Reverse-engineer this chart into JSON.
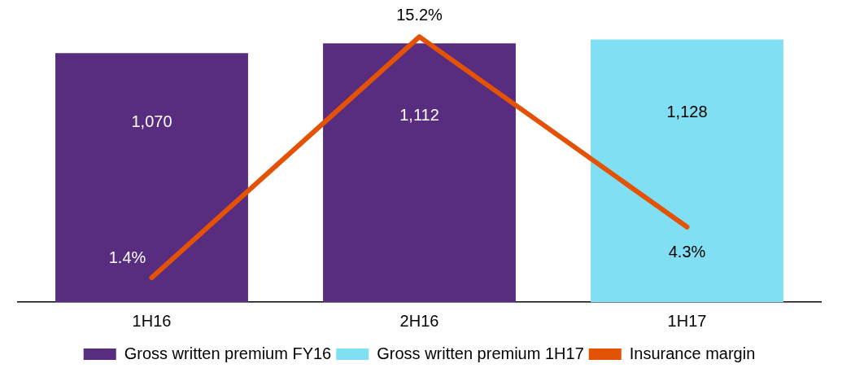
{
  "chart_data": {
    "type": "bar",
    "stacked": true,
    "categories": [
      "1H16",
      "2H16",
      "1H17"
    ],
    "tick_labels": "x",
    "grid": false,
    "legend": "bottom",
    "series": [
      {
        "name": "Gross written premium FY16",
        "color": "#582c7e",
        "values": [
          1070,
          1112,
          null
        ],
        "value_labels": [
          "1,070",
          "1,112",
          null
        ]
      },
      {
        "name": "Gross written premium 1H17",
        "color": "#80dff2",
        "values": [
          null,
          null,
          1128
        ],
        "value_labels": [
          null,
          null,
          "1,128"
        ]
      },
      {
        "name": "Insurance margin",
        "type": "line",
        "axis": "y2",
        "color": "#e35205",
        "values": [
          1.4,
          15.2,
          4.3
        ],
        "value_labels": [
          "1.4%",
          "15.2%",
          "4.3%"
        ]
      }
    ]
  }
}
